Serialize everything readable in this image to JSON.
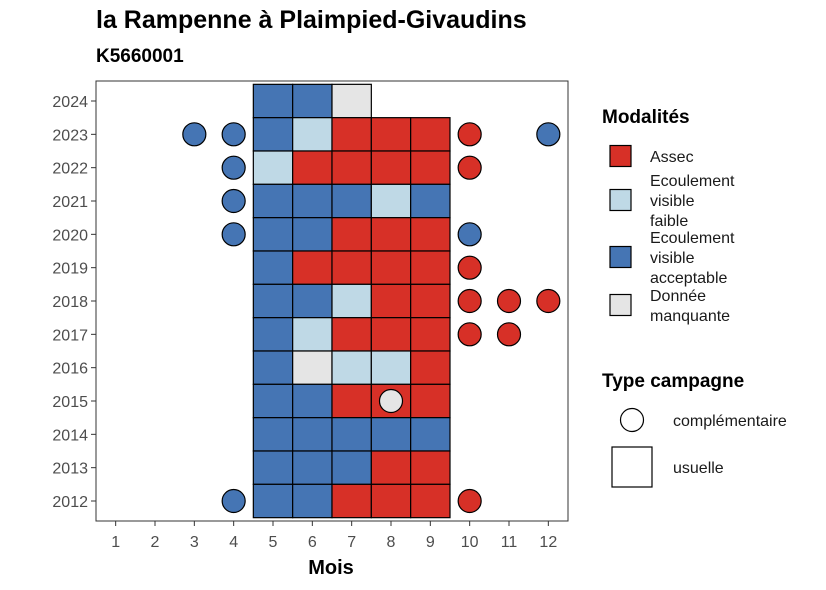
{
  "chart_data": {
    "type": "heatmap",
    "title": "la Rampenne à Plaimpied-Givaudins",
    "subtitle": "K5660001",
    "xlabel": "Mois",
    "ylabel": "",
    "x_ticks": [
      "1",
      "2",
      "3",
      "4",
      "5",
      "6",
      "7",
      "8",
      "9",
      "10",
      "11",
      "12"
    ],
    "y_ticks": [
      "2012",
      "2013",
      "2014",
      "2015",
      "2016",
      "2017",
      "2018",
      "2019",
      "2020",
      "2021",
      "2022",
      "2023",
      "2024"
    ],
    "xlim": [
      0.5,
      12.5
    ],
    "ylim": [
      2011.4,
      2024.6
    ],
    "grid": false,
    "legend_position": "right",
    "modalites": {
      "title": "Modalités",
      "items": [
        {
          "key": "A",
          "lines": [
            "Assec"
          ],
          "color": "#D73027"
        },
        {
          "key": "EF",
          "lines": [
            "Ecoulement",
            "visible",
            "faible"
          ],
          "color": "#BFD9E6"
        },
        {
          "key": "EA",
          "lines": [
            "Ecoulement",
            "visible",
            "acceptable"
          ],
          "color": "#4575B4"
        },
        {
          "key": "NA",
          "lines": [
            "Donnée",
            "manquante"
          ],
          "color": "#E5E5E5"
        }
      ]
    },
    "campagne": {
      "title": "Type campagne",
      "items": [
        {
          "key": "c",
          "label": "complémentaire",
          "shape": "circle"
        },
        {
          "key": "u",
          "label": "usuelle",
          "shape": "square"
        }
      ]
    },
    "observations": [
      {
        "year": 2024,
        "month": 5,
        "state": "EA",
        "type": "u"
      },
      {
        "year": 2024,
        "month": 6,
        "state": "EA",
        "type": "u"
      },
      {
        "year": 2024,
        "month": 7,
        "state": "NA",
        "type": "u"
      },
      {
        "year": 2023,
        "month": 3,
        "state": "EA",
        "type": "c"
      },
      {
        "year": 2023,
        "month": 4,
        "state": "EA",
        "type": "c"
      },
      {
        "year": 2023,
        "month": 5,
        "state": "EA",
        "type": "u"
      },
      {
        "year": 2023,
        "month": 6,
        "state": "EF",
        "type": "u"
      },
      {
        "year": 2023,
        "month": 7,
        "state": "A",
        "type": "u"
      },
      {
        "year": 2023,
        "month": 8,
        "state": "A",
        "type": "u"
      },
      {
        "year": 2023,
        "month": 9,
        "state": "A",
        "type": "u"
      },
      {
        "year": 2023,
        "month": 10,
        "state": "A",
        "type": "c"
      },
      {
        "year": 2023,
        "month": 12,
        "state": "EA",
        "type": "c"
      },
      {
        "year": 2022,
        "month": 4,
        "state": "EA",
        "type": "c"
      },
      {
        "year": 2022,
        "month": 5,
        "state": "EF",
        "type": "u"
      },
      {
        "year": 2022,
        "month": 6,
        "state": "A",
        "type": "u"
      },
      {
        "year": 2022,
        "month": 7,
        "state": "A",
        "type": "u"
      },
      {
        "year": 2022,
        "month": 8,
        "state": "A",
        "type": "u"
      },
      {
        "year": 2022,
        "month": 9,
        "state": "A",
        "type": "u"
      },
      {
        "year": 2022,
        "month": 10,
        "state": "A",
        "type": "c"
      },
      {
        "year": 2021,
        "month": 4,
        "state": "EA",
        "type": "c"
      },
      {
        "year": 2021,
        "month": 5,
        "state": "EA",
        "type": "u"
      },
      {
        "year": 2021,
        "month": 6,
        "state": "EA",
        "type": "u"
      },
      {
        "year": 2021,
        "month": 7,
        "state": "EA",
        "type": "u"
      },
      {
        "year": 2021,
        "month": 8,
        "state": "EF",
        "type": "u"
      },
      {
        "year": 2021,
        "month": 9,
        "state": "EA",
        "type": "u"
      },
      {
        "year": 2020,
        "month": 4,
        "state": "EA",
        "type": "c"
      },
      {
        "year": 2020,
        "month": 5,
        "state": "EA",
        "type": "u"
      },
      {
        "year": 2020,
        "month": 6,
        "state": "EA",
        "type": "u"
      },
      {
        "year": 2020,
        "month": 7,
        "state": "A",
        "type": "u"
      },
      {
        "year": 2020,
        "month": 8,
        "state": "A",
        "type": "u"
      },
      {
        "year": 2020,
        "month": 9,
        "state": "A",
        "type": "u"
      },
      {
        "year": 2020,
        "month": 10,
        "state": "EA",
        "type": "c"
      },
      {
        "year": 2019,
        "month": 5,
        "state": "EA",
        "type": "u"
      },
      {
        "year": 2019,
        "month": 6,
        "state": "A",
        "type": "u"
      },
      {
        "year": 2019,
        "month": 7,
        "state": "A",
        "type": "u"
      },
      {
        "year": 2019,
        "month": 8,
        "state": "A",
        "type": "u"
      },
      {
        "year": 2019,
        "month": 9,
        "state": "A",
        "type": "u"
      },
      {
        "year": 2019,
        "month": 10,
        "state": "A",
        "type": "c"
      },
      {
        "year": 2018,
        "month": 5,
        "state": "EA",
        "type": "u"
      },
      {
        "year": 2018,
        "month": 6,
        "state": "EA",
        "type": "u"
      },
      {
        "year": 2018,
        "month": 7,
        "state": "EF",
        "type": "u"
      },
      {
        "year": 2018,
        "month": 8,
        "state": "A",
        "type": "u"
      },
      {
        "year": 2018,
        "month": 9,
        "state": "A",
        "type": "u"
      },
      {
        "year": 2018,
        "month": 10,
        "state": "A",
        "type": "c"
      },
      {
        "year": 2018,
        "month": 11,
        "state": "A",
        "type": "c"
      },
      {
        "year": 2018,
        "month": 12,
        "state": "A",
        "type": "c"
      },
      {
        "year": 2017,
        "month": 5,
        "state": "EA",
        "type": "u"
      },
      {
        "year": 2017,
        "month": 6,
        "state": "EF",
        "type": "u"
      },
      {
        "year": 2017,
        "month": 7,
        "state": "A",
        "type": "u"
      },
      {
        "year": 2017,
        "month": 8,
        "state": "A",
        "type": "u"
      },
      {
        "year": 2017,
        "month": 9,
        "state": "A",
        "type": "u"
      },
      {
        "year": 2017,
        "month": 10,
        "state": "A",
        "type": "c"
      },
      {
        "year": 2017,
        "month": 11,
        "state": "A",
        "type": "c"
      },
      {
        "year": 2016,
        "month": 5,
        "state": "EA",
        "type": "u"
      },
      {
        "year": 2016,
        "month": 6,
        "state": "NA",
        "type": "u"
      },
      {
        "year": 2016,
        "month": 7,
        "state": "EF",
        "type": "u"
      },
      {
        "year": 2016,
        "month": 8,
        "state": "EF",
        "type": "u"
      },
      {
        "year": 2016,
        "month": 9,
        "state": "A",
        "type": "u"
      },
      {
        "year": 2015,
        "month": 5,
        "state": "EA",
        "type": "u"
      },
      {
        "year": 2015,
        "month": 6,
        "state": "EA",
        "type": "u"
      },
      {
        "year": 2015,
        "month": 7,
        "state": "A",
        "type": "u"
      },
      {
        "year": 2015,
        "month": 8,
        "state": "A",
        "type": "u"
      },
      {
        "year": 2015,
        "month": 8,
        "state": "NA",
        "type": "c"
      },
      {
        "year": 2015,
        "month": 9,
        "state": "A",
        "type": "u"
      },
      {
        "year": 2014,
        "month": 5,
        "state": "EA",
        "type": "u"
      },
      {
        "year": 2014,
        "month": 6,
        "state": "EA",
        "type": "u"
      },
      {
        "year": 2014,
        "month": 7,
        "state": "EA",
        "type": "u"
      },
      {
        "year": 2014,
        "month": 8,
        "state": "EA",
        "type": "u"
      },
      {
        "year": 2014,
        "month": 9,
        "state": "EA",
        "type": "u"
      },
      {
        "year": 2013,
        "month": 5,
        "state": "EA",
        "type": "u"
      },
      {
        "year": 2013,
        "month": 6,
        "state": "EA",
        "type": "u"
      },
      {
        "year": 2013,
        "month": 7,
        "state": "EA",
        "type": "u"
      },
      {
        "year": 2013,
        "month": 8,
        "state": "A",
        "type": "u"
      },
      {
        "year": 2013,
        "month": 9,
        "state": "A",
        "type": "u"
      },
      {
        "year": 2012,
        "month": 4,
        "state": "EA",
        "type": "c"
      },
      {
        "year": 2012,
        "month": 5,
        "state": "EA",
        "type": "u"
      },
      {
        "year": 2012,
        "month": 6,
        "state": "EA",
        "type": "u"
      },
      {
        "year": 2012,
        "month": 7,
        "state": "A",
        "type": "u"
      },
      {
        "year": 2012,
        "month": 8,
        "state": "A",
        "type": "u"
      },
      {
        "year": 2012,
        "month": 9,
        "state": "A",
        "type": "u"
      },
      {
        "year": 2012,
        "month": 10,
        "state": "A",
        "type": "c"
      }
    ]
  }
}
